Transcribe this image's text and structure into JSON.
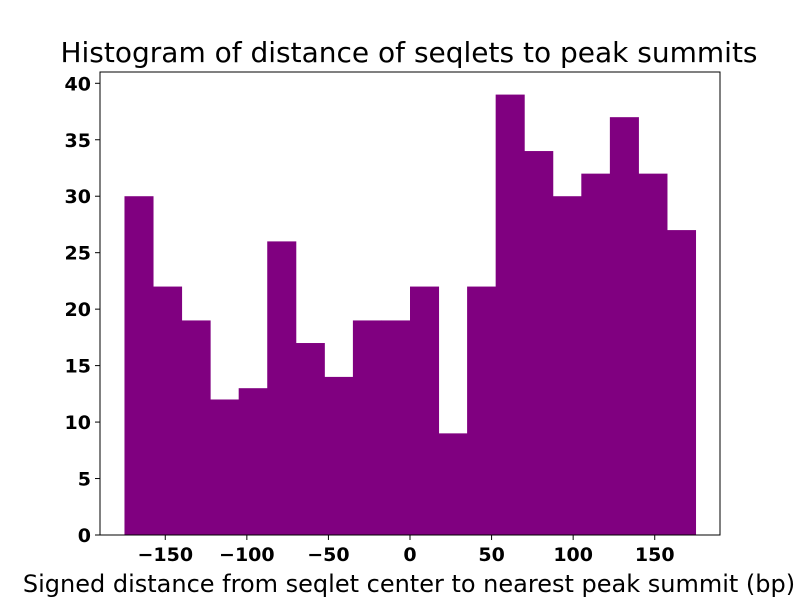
{
  "chart_data": {
    "type": "bar",
    "title": "Histogram of distance of seqlets to peak summits",
    "xlabel": "Signed distance from seqlet center to nearest peak summit (bp)",
    "ylabel": "",
    "color": "#800080",
    "bin_edges": [
      -175,
      -157.5,
      -140,
      -122.5,
      -105,
      -87.5,
      -70,
      -52.5,
      -35,
      -17.5,
      0,
      17.5,
      35,
      52.5,
      70,
      87.5,
      105,
      122.5,
      140,
      157.5,
      175
    ],
    "values": [
      30,
      22,
      19,
      12,
      13,
      26,
      17,
      14,
      19,
      19,
      22,
      9,
      22,
      39,
      34,
      30,
      32,
      37,
      32,
      27
    ],
    "xlim": [
      -190,
      190
    ],
    "ylim": [
      0,
      41
    ],
    "xticks": [
      -150,
      -100,
      -50,
      0,
      50,
      100,
      150
    ],
    "xtick_labels": [
      "−150",
      "−100",
      "−50",
      "0",
      "50",
      "100",
      "150"
    ],
    "yticks": [
      0,
      5,
      10,
      15,
      20,
      25,
      30,
      35,
      40
    ],
    "ytick_labels": [
      "0",
      "5",
      "10",
      "15",
      "20",
      "25",
      "30",
      "35",
      "40"
    ],
    "grid": false
  }
}
